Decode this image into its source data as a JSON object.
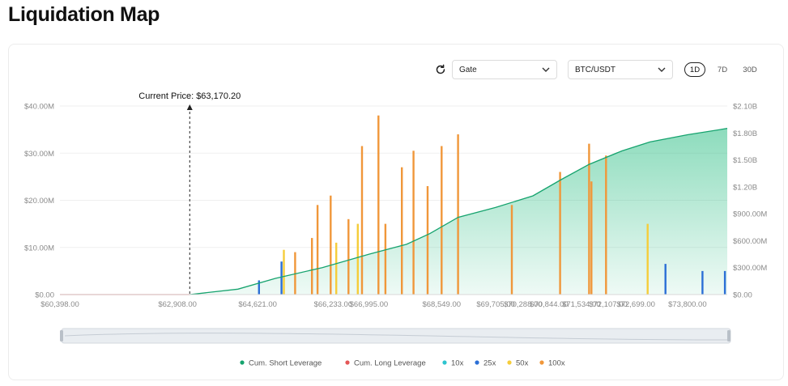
{
  "page": {
    "title": "Liquidation Map"
  },
  "controls": {
    "exchange": {
      "value": "Gate"
    },
    "pair": {
      "value": "BTC/USDT"
    },
    "timeframes": [
      {
        "label": "1D",
        "active": true
      },
      {
        "label": "7D",
        "active": false
      },
      {
        "label": "30D",
        "active": false
      }
    ],
    "refresh_icon": "refresh-icon",
    "dropdown_icon": "chevron-down-icon"
  },
  "chart_data": {
    "type": "bar",
    "current_price": {
      "label": "Current Price: $63,170.20",
      "value": 63170.2
    },
    "x_range": [
      60398,
      74650
    ],
    "x_ticks": [
      {
        "value": 60398,
        "label": "$60,398.00"
      },
      {
        "value": 62908,
        "label": "$62,908.00"
      },
      {
        "value": 64621,
        "label": "$64,621.00"
      },
      {
        "value": 66233,
        "label": "$66,233.00"
      },
      {
        "value": 66995,
        "label": "$66,995.00"
      },
      {
        "value": 68549,
        "label": "$68,549.00"
      },
      {
        "value": 69705,
        "label": "$69,705.00"
      },
      {
        "value": 70288,
        "label": "$70,288.00"
      },
      {
        "value": 70844,
        "label": "$70,844.00"
      },
      {
        "value": 71534,
        "label": "$71,534.00"
      },
      {
        "value": 72107,
        "label": "$72,107.00"
      },
      {
        "value": 72699,
        "label": "$72,699.00"
      },
      {
        "value": 73800,
        "label": "$73,800.00"
      }
    ],
    "y_left": {
      "range": [
        0,
        40000000
      ],
      "ticks": [
        {
          "value": 0,
          "label": "$0.00"
        },
        {
          "value": 10000000,
          "label": "$10.00M"
        },
        {
          "value": 20000000,
          "label": "$20.00M"
        },
        {
          "value": 30000000,
          "label": "$30.00M"
        },
        {
          "value": 40000000,
          "label": "$40.00M"
        }
      ]
    },
    "y_right": {
      "range": [
        0,
        2100000000
      ],
      "ticks": [
        {
          "value": 0,
          "label": "$0.00"
        },
        {
          "value": 300000000,
          "label": "$300.00M"
        },
        {
          "value": 600000000,
          "label": "$600.00M"
        },
        {
          "value": 900000000,
          "label": "$900.00M"
        },
        {
          "value": 1200000000,
          "label": "$1.20B"
        },
        {
          "value": 1500000000,
          "label": "$1.50B"
        },
        {
          "value": 1800000000,
          "label": "$1.80B"
        },
        {
          "value": 2100000000,
          "label": "$2.10B"
        }
      ]
    },
    "grid": true,
    "legend_position": "bottom",
    "legend": [
      {
        "name": "Cum. Short Leverage",
        "color": "#16a36e"
      },
      {
        "name": "Cum. Long Leverage",
        "color": "#e45757"
      },
      {
        "name": "10x",
        "color": "#2ec4cf"
      },
      {
        "name": "25x",
        "color": "#2b6fd6"
      },
      {
        "name": "50x",
        "color": "#f5cd3a"
      },
      {
        "name": "100x",
        "color": "#f0973a"
      }
    ],
    "bars": [
      {
        "price": 64650,
        "series": "25x",
        "value": 3000000
      },
      {
        "price": 65130,
        "series": "25x",
        "value": 7000000
      },
      {
        "price": 65180,
        "series": "50x",
        "value": 9500000
      },
      {
        "price": 65420,
        "series": "100x",
        "value": 9000000
      },
      {
        "price": 65780,
        "series": "100x",
        "value": 12000000
      },
      {
        "price": 65900,
        "series": "100x",
        "value": 19000000
      },
      {
        "price": 66180,
        "series": "100x",
        "value": 21000000
      },
      {
        "price": 66300,
        "series": "50x",
        "value": 11000000
      },
      {
        "price": 66560,
        "series": "100x",
        "value": 16000000
      },
      {
        "price": 66760,
        "series": "50x",
        "value": 15000000
      },
      {
        "price": 66850,
        "series": "100x",
        "value": 31500000
      },
      {
        "price": 67200,
        "series": "100x",
        "value": 38000000
      },
      {
        "price": 67350,
        "series": "100x",
        "value": 15000000
      },
      {
        "price": 67700,
        "series": "100x",
        "value": 27000000
      },
      {
        "price": 67950,
        "series": "100x",
        "value": 30500000
      },
      {
        "price": 68250,
        "series": "100x",
        "value": 23000000
      },
      {
        "price": 68550,
        "series": "100x",
        "value": 31500000
      },
      {
        "price": 68900,
        "series": "100x",
        "value": 34000000
      },
      {
        "price": 70050,
        "series": "100x",
        "value": 19000000
      },
      {
        "price": 71080,
        "series": "100x",
        "value": 26000000
      },
      {
        "price": 71700,
        "series": "100x",
        "value": 32000000
      },
      {
        "price": 71750,
        "series": "100x",
        "value": 24000000
      },
      {
        "price": 72060,
        "series": "100x",
        "value": 29500000
      },
      {
        "price": 72950,
        "series": "50x",
        "value": 15000000
      },
      {
        "price": 73330,
        "series": "25x",
        "value": 6500000
      },
      {
        "price": 74120,
        "series": "25x",
        "value": 5000000
      },
      {
        "price": 74600,
        "series": "25x",
        "value": 5000000
      }
    ],
    "cum_short_leverage": [
      {
        "price": 63170,
        "value": 0
      },
      {
        "price": 64200,
        "value": 60000000
      },
      {
        "price": 65000,
        "value": 180000000
      },
      {
        "price": 66000,
        "value": 300000000
      },
      {
        "price": 67000,
        "value": 450000000
      },
      {
        "price": 67800,
        "value": 560000000
      },
      {
        "price": 68300,
        "value": 680000000
      },
      {
        "price": 68900,
        "value": 860000000
      },
      {
        "price": 69700,
        "value": 970000000
      },
      {
        "price": 70500,
        "value": 1100000000
      },
      {
        "price": 71100,
        "value": 1280000000
      },
      {
        "price": 71700,
        "value": 1450000000
      },
      {
        "price": 72400,
        "value": 1600000000
      },
      {
        "price": 73000,
        "value": 1700000000
      },
      {
        "price": 73800,
        "value": 1780000000
      },
      {
        "price": 74650,
        "value": 1850000000
      }
    ],
    "cum_long_leverage": [
      {
        "price": 60398,
        "value": 0
      },
      {
        "price": 63170,
        "value": 0
      }
    ]
  }
}
